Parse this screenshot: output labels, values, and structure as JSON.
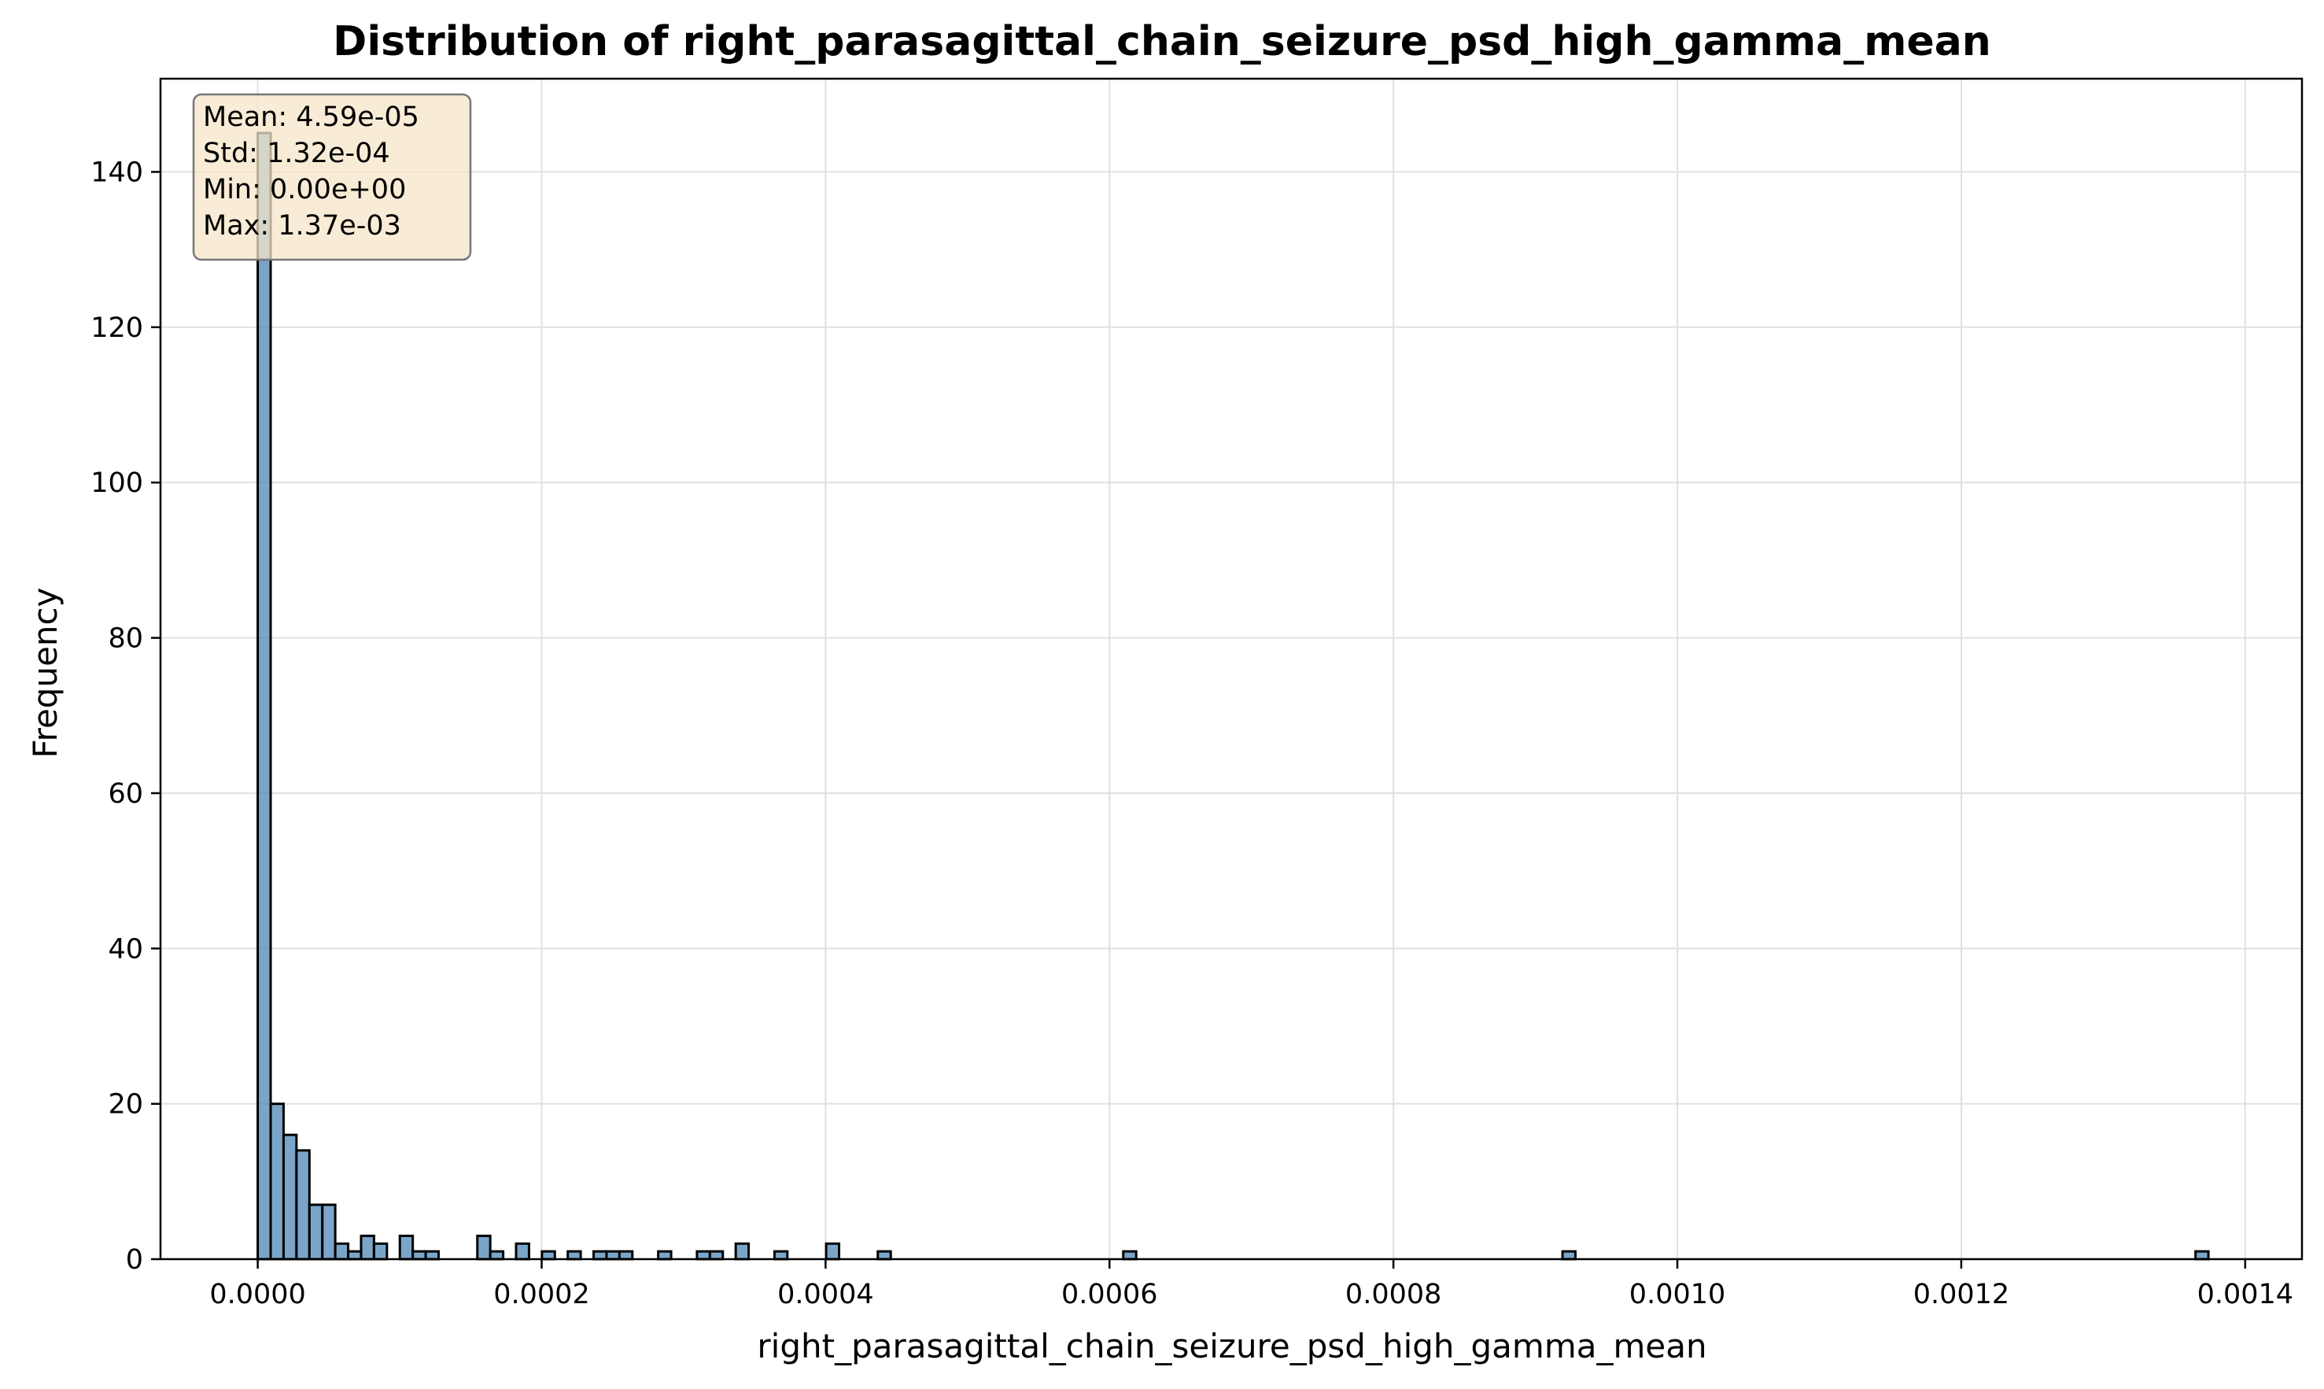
{
  "chart_data": {
    "type": "bar",
    "title": "Distribution of right_parasagittal_chain_seizure_psd_high_gamma_mean",
    "xlabel": "right_parasagittal_chain_seizure_psd_high_gamma_mean",
    "ylabel": "Frequency",
    "xlim": [
      -6.85e-05,
      0.00144
    ],
    "ylim": [
      0,
      152
    ],
    "x_ticks": [
      0.0,
      0.0002,
      0.0004,
      0.0006,
      0.0008,
      0.001,
      0.0012,
      0.0014
    ],
    "x_tick_labels": [
      "0.0000",
      "0.0002",
      "0.0004",
      "0.0006",
      "0.0008",
      "0.0010",
      "0.0012",
      "0.0014"
    ],
    "y_ticks": [
      0,
      20,
      40,
      60,
      80,
      100,
      120,
      140
    ],
    "y_tick_labels": [
      "0",
      "20",
      "40",
      "60",
      "80",
      "100",
      "120",
      "140"
    ],
    "grid": true,
    "bin_width": 9.1e-06,
    "bins": [
      {
        "x": 0.0,
        "count": 145
      },
      {
        "x": 9.1e-06,
        "count": 20
      },
      {
        "x": 1.82e-05,
        "count": 16
      },
      {
        "x": 2.73e-05,
        "count": 14
      },
      {
        "x": 3.64e-05,
        "count": 7
      },
      {
        "x": 4.55e-05,
        "count": 7
      },
      {
        "x": 5.46e-05,
        "count": 2
      },
      {
        "x": 6.37e-05,
        "count": 1
      },
      {
        "x": 7.28e-05,
        "count": 3
      },
      {
        "x": 8.19e-05,
        "count": 2
      },
      {
        "x": 0.0001001,
        "count": 3
      },
      {
        "x": 0.0001092,
        "count": 1
      },
      {
        "x": 0.0001183,
        "count": 1
      },
      {
        "x": 0.0001547,
        "count": 3
      },
      {
        "x": 0.0001638,
        "count": 1
      },
      {
        "x": 0.000182,
        "count": 2
      },
      {
        "x": 0.0002002,
        "count": 1
      },
      {
        "x": 0.0002184,
        "count": 1
      },
      {
        "x": 0.0002366,
        "count": 1
      },
      {
        "x": 0.0002457,
        "count": 1
      },
      {
        "x": 0.0002548,
        "count": 1
      },
      {
        "x": 0.0002821,
        "count": 1
      },
      {
        "x": 0.0003094,
        "count": 1
      },
      {
        "x": 0.0003185,
        "count": 1
      },
      {
        "x": 0.0003367,
        "count": 2
      },
      {
        "x": 0.000364,
        "count": 1
      },
      {
        "x": 0.0004004,
        "count": 2
      },
      {
        "x": 0.0004368,
        "count": 1
      },
      {
        "x": 0.0006097,
        "count": 1
      },
      {
        "x": 0.0009191,
        "count": 1
      },
      {
        "x": 0.001365,
        "count": 1
      }
    ],
    "stats_box": {
      "lines": [
        "Mean: 4.59e-05",
        "Std: 1.32e-04",
        "Min: 0.00e+00",
        "Max: 1.37e-03"
      ],
      "placement": "top-left"
    },
    "colors": {
      "bar_fill": "#4682b4",
      "bar_edge": "#000000",
      "grid": "#e0e0e0",
      "stats_box_fill": "#f5e6c8",
      "stats_box_edge": "#777777"
    }
  }
}
